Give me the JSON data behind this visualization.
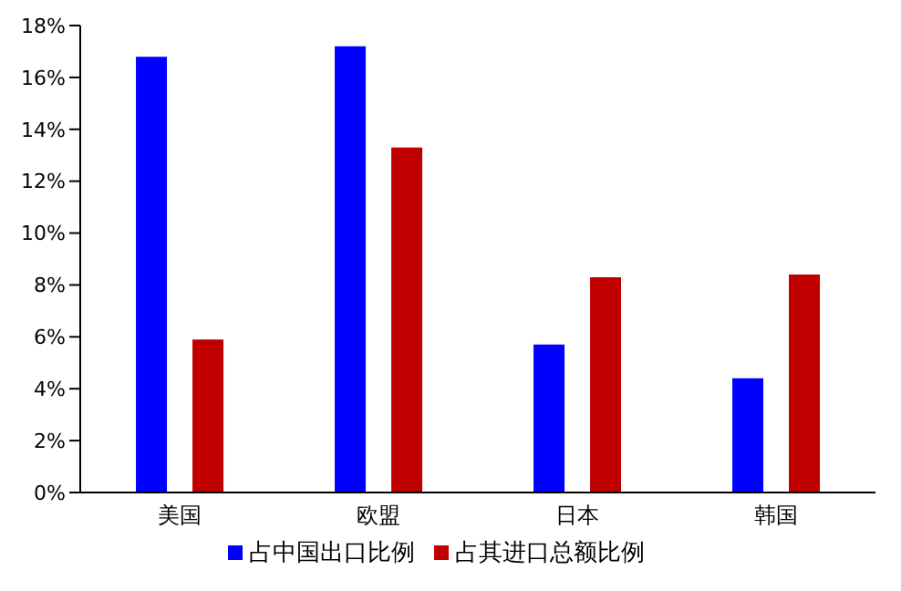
{
  "chart_data": {
    "type": "bar",
    "categories": [
      "美国",
      "欧盟",
      "日本",
      "韩国"
    ],
    "series": [
      {
        "name": "占中国出口比例",
        "color": "#0000ff",
        "values": [
          16.8,
          17.2,
          5.7,
          4.4
        ]
      },
      {
        "name": "占其进口总额比例",
        "color": "#c00000",
        "values": [
          5.9,
          13.3,
          8.3,
          8.4
        ]
      }
    ],
    "ylim": [
      0,
      18
    ],
    "yticks": [
      {
        "value": 0,
        "label": "0%"
      },
      {
        "value": 2,
        "label": "2%"
      },
      {
        "value": 4,
        "label": "4%"
      },
      {
        "value": 6,
        "label": "6%"
      },
      {
        "value": 8,
        "label": "8%"
      },
      {
        "value": 10,
        "label": "10%"
      },
      {
        "value": 12,
        "label": "12%"
      },
      {
        "value": 14,
        "label": "14%"
      },
      {
        "value": 16,
        "label": "16%"
      },
      {
        "value": 18,
        "label": "18%"
      }
    ],
    "grid": false,
    "legend": "bottom"
  }
}
